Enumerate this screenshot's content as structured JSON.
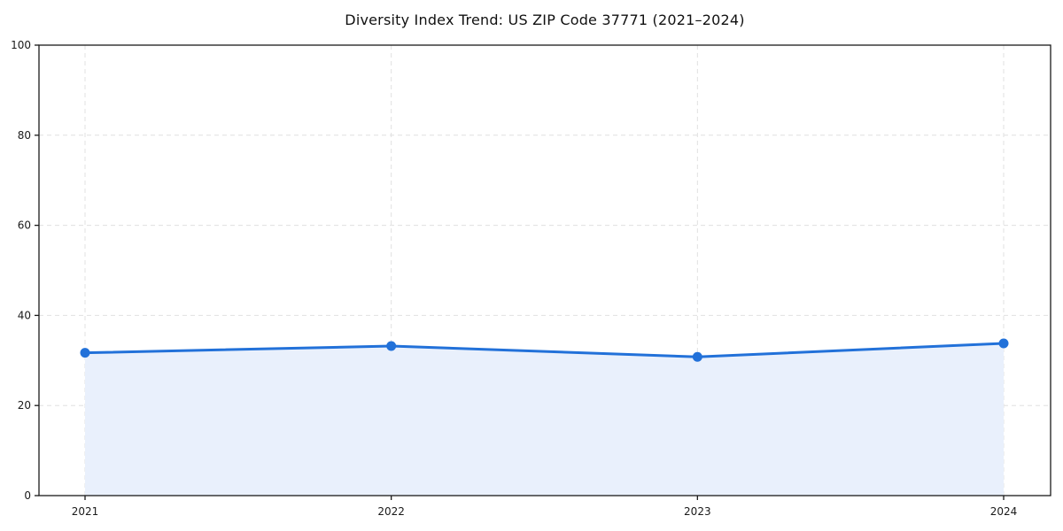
{
  "chart_data": {
    "type": "line",
    "title": "Diversity Index Trend: US ZIP Code 37771 (2021–2024)",
    "categories": [
      "2021",
      "2022",
      "2023",
      "2024"
    ],
    "series": [
      {
        "name": "Diversity Index",
        "values": [
          31.7,
          33.2,
          30.8,
          33.8
        ]
      }
    ],
    "xlabel": "",
    "ylabel": "",
    "ylim": [
      0,
      100
    ],
    "yticks": [
      0,
      20,
      40,
      60,
      80,
      100
    ],
    "grid": true,
    "grid_style": "dashed",
    "legend_position": "none",
    "area_fill": true,
    "marker": "circle",
    "colors": {
      "line": "#2271d9",
      "marker": "#2271d9",
      "area_fill": "#e9f0fc",
      "grid": "#e0e0e0",
      "axis": "#1a1a1a",
      "tick_text": "#1a1a1a",
      "background": "#ffffff"
    }
  }
}
